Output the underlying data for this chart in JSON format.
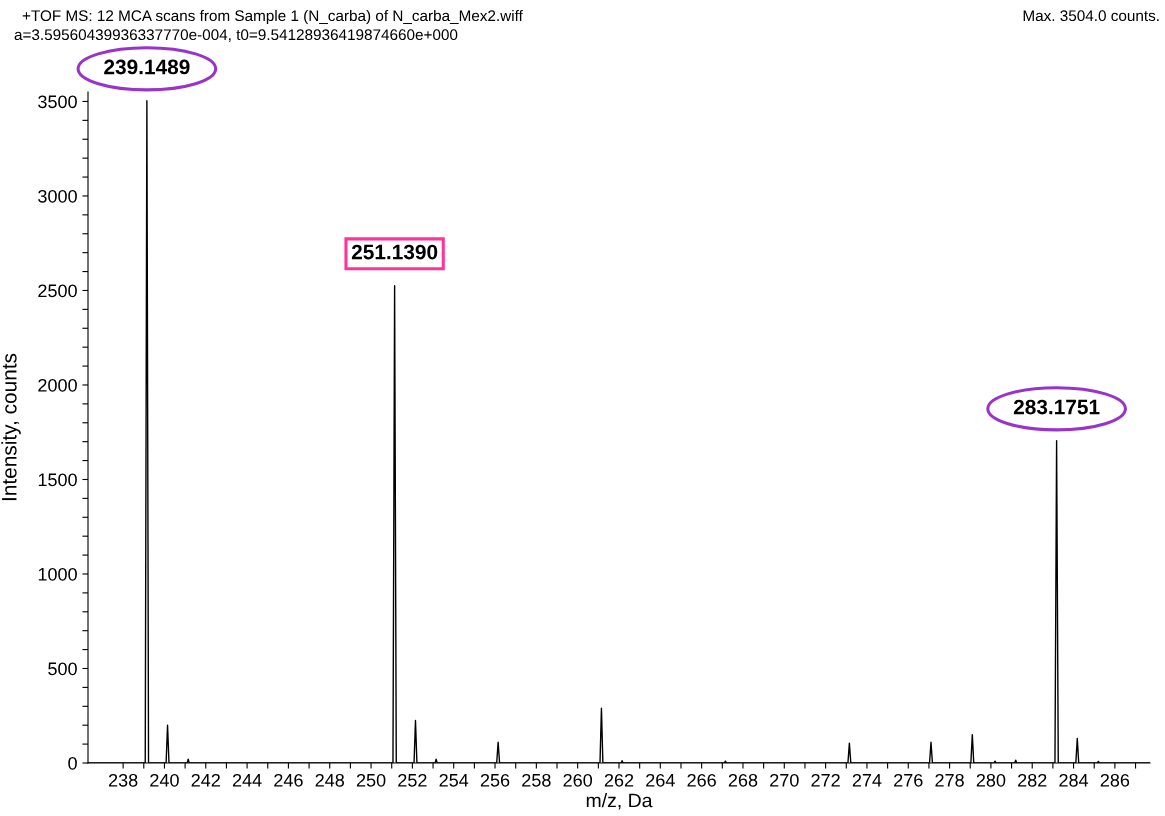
{
  "chart_data": {
    "type": "line",
    "title": "+TOF MS: 12 MCA scans from Sample 1 (N_carba) of N_carba_Mex2.wiff",
    "subtitle": "a=3.59560439936337770e-004, t0=9.54128936419874660e+000",
    "xlabel": "m/z, Da",
    "ylabel": "Intensity, counts",
    "series": [
      {
        "color": "#000000",
        "x": [
          236.3,
          239.07,
          239.15,
          239.23,
          240.08,
          240.15,
          240.22,
          241.1,
          241.15,
          241.2,
          251.06,
          251.14,
          251.22,
          252.08,
          252.15,
          252.22,
          253.1,
          253.15,
          253.2,
          256.08,
          256.15,
          256.22,
          261.08,
          261.15,
          261.22,
          262.1,
          262.15,
          262.2,
          267.1,
          267.15,
          267.2,
          273.08,
          273.15,
          273.22,
          277.03,
          277.1,
          277.17,
          279.03,
          279.1,
          279.17,
          280.15,
          280.2,
          280.25,
          281.15,
          281.2,
          281.25,
          283.1,
          283.18,
          283.26,
          284.11,
          284.18,
          284.25,
          285.15,
          285.2,
          285.25,
          287.7
        ],
        "values": [
          0,
          0,
          3504,
          0,
          0,
          200,
          0,
          0,
          20,
          0,
          0,
          2525,
          0,
          0,
          225,
          0,
          0,
          20,
          0,
          0,
          110,
          0,
          0,
          290,
          0,
          0,
          12,
          0,
          0,
          10,
          0,
          0,
          105,
          0,
          0,
          110,
          0,
          0,
          150,
          0,
          0,
          10,
          0,
          0,
          15,
          0,
          0,
          1705,
          0,
          0,
          130,
          0,
          0,
          8,
          0,
          0
        ]
      }
    ],
    "annotations": [
      {
        "text": "239.1489",
        "x": 239.15,
        "y": 3504
      },
      {
        "text": "251.1390",
        "x": 251.14,
        "y": 2525
      },
      {
        "text": "283.1751",
        "x": 283.18,
        "y": 1705
      },
      "Max. 3504.0 counts."
    ],
    "xlim": [
      236.3,
      287.7
    ],
    "ylim": [
      0,
      3550
    ],
    "xticks": [
      238,
      {
        "value": 239,
        "label": null
      },
      240,
      {
        "value": 241,
        "label": null
      },
      242,
      {
        "value": 243,
        "label": null
      },
      244,
      {
        "value": 245,
        "label": null
      },
      246,
      {
        "value": 247,
        "label": null
      },
      248,
      {
        "value": 249,
        "label": null
      },
      250,
      {
        "value": 251,
        "label": null
      },
      252,
      {
        "value": 253,
        "label": null
      },
      254,
      {
        "value": 255,
        "label": null
      },
      256,
      {
        "value": 257,
        "label": null
      },
      258,
      {
        "value": 259,
        "label": null
      },
      260,
      {
        "value": 261,
        "label": null
      },
      262,
      {
        "value": 263,
        "label": null
      },
      264,
      {
        "value": 265,
        "label": null
      },
      266,
      {
        "value": 267,
        "label": null
      },
      268,
      {
        "value": 269,
        "label": null
      },
      270,
      {
        "value": 271,
        "label": null
      },
      272,
      {
        "value": 273,
        "label": null
      },
      274,
      {
        "value": 275,
        "label": null
      },
      276,
      {
        "value": 277,
        "label": null
      },
      278,
      {
        "value": 279,
        "label": null
      },
      280,
      {
        "value": 281,
        "label": null
      },
      282,
      {
        "value": 283,
        "label": null
      },
      284,
      {
        "value": 285,
        "label": null
      },
      286,
      {
        "value": 287,
        "label": null
      }
    ],
    "yticks": [
      0,
      {
        "value": 100,
        "label": null
      },
      {
        "value": 200,
        "label": null
      },
      {
        "value": 300,
        "label": null
      },
      {
        "value": 400,
        "label": null
      },
      500,
      {
        "value": 600,
        "label": null
      },
      {
        "value": 700,
        "label": null
      },
      {
        "value": 800,
        "label": null
      },
      {
        "value": 900,
        "label": null
      },
      1000,
      {
        "value": 1100,
        "label": null
      },
      {
        "value": 1200,
        "label": null
      },
      {
        "value": 1300,
        "label": null
      },
      {
        "value": 1400,
        "label": null
      },
      1500,
      {
        "value": 1600,
        "label": null
      },
      {
        "value": 1700,
        "label": null
      },
      {
        "value": 1800,
        "label": null
      },
      {
        "value": 1900,
        "label": null
      },
      2000,
      {
        "value": 2100,
        "label": null
      },
      {
        "value": 2200,
        "label": null
      },
      {
        "value": 2300,
        "label": null
      },
      {
        "value": 2400,
        "label": null
      },
      2500,
      {
        "value": 2600,
        "label": null
      },
      {
        "value": 2700,
        "label": null
      },
      {
        "value": 2800,
        "label": null
      },
      {
        "value": 2900,
        "label": null
      },
      3000,
      {
        "value": 3100,
        "label": null
      },
      {
        "value": 3200,
        "label": null
      },
      {
        "value": 3300,
        "label": null
      },
      {
        "value": 3400,
        "label": null
      },
      3500
    ],
    "grid": false,
    "legend": false,
    "marker": "none",
    "line_style": "solid"
  }
}
